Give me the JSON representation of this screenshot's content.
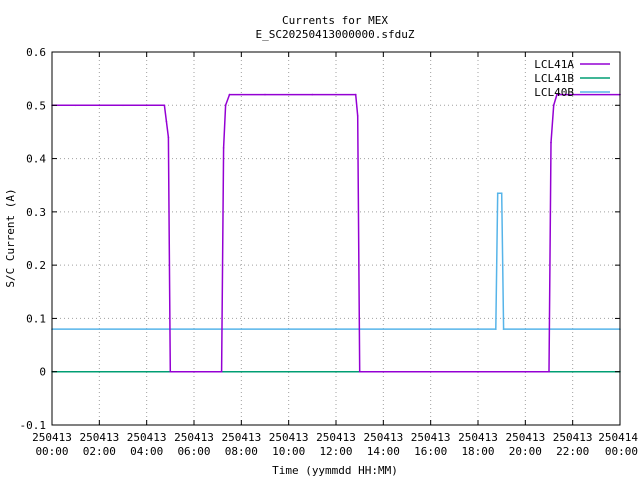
{
  "chart_data": {
    "type": "line",
    "title": "Currents for MEX",
    "subtitle": "E_SC20250413000000.sfduZ",
    "xlabel": "Time (yymmdd HH:MM)",
    "ylabel": "S/C Current (A)",
    "xlim": [
      "2025-04-13 00:00",
      "2025-04-14 00:00"
    ],
    "ylim": [
      -0.1,
      0.6
    ],
    "grid": true,
    "legend_position": "top-right",
    "y_ticks": [
      "-0.1",
      "0",
      "0.1",
      "0.2",
      "0.3",
      "0.4",
      "0.5",
      "0.6"
    ],
    "x_ticks": [
      {
        "date": "250413",
        "time": "00:00"
      },
      {
        "date": "250413",
        "time": "02:00"
      },
      {
        "date": "250413",
        "time": "04:00"
      },
      {
        "date": "250413",
        "time": "06:00"
      },
      {
        "date": "250413",
        "time": "08:00"
      },
      {
        "date": "250413",
        "time": "10:00"
      },
      {
        "date": "250413",
        "time": "12:00"
      },
      {
        "date": "250413",
        "time": "14:00"
      },
      {
        "date": "250413",
        "time": "16:00"
      },
      {
        "date": "250413",
        "time": "18:00"
      },
      {
        "date": "250413",
        "time": "20:00"
      },
      {
        "date": "250413",
        "time": "22:00"
      },
      {
        "date": "250414",
        "time": "00:00"
      }
    ],
    "series": [
      {
        "name": "LCL41A",
        "color": "#9400d3",
        "points": [
          [
            "00:00",
            0.5
          ],
          [
            "01:00",
            0.5
          ],
          [
            "02:00",
            0.5
          ],
          [
            "03:00",
            0.5
          ],
          [
            "04:00",
            0.5
          ],
          [
            "04:45",
            0.5
          ],
          [
            "04:50",
            0.47
          ],
          [
            "04:55",
            0.44
          ],
          [
            "05:00",
            0.0
          ],
          [
            "07:10",
            0.0
          ],
          [
            "07:15",
            0.42
          ],
          [
            "07:20",
            0.5
          ],
          [
            "07:30",
            0.52
          ],
          [
            "09:00",
            0.52
          ],
          [
            "11:00",
            0.52
          ],
          [
            "12:50",
            0.52
          ],
          [
            "12:55",
            0.48
          ],
          [
            "13:00",
            0.0
          ],
          [
            "21:00",
            0.0
          ],
          [
            "21:05",
            0.43
          ],
          [
            "21:12",
            0.5
          ],
          [
            "21:20",
            0.52
          ],
          [
            "24:00",
            0.52
          ]
        ]
      },
      {
        "name": "LCL41B",
        "color": "#009e73",
        "points": [
          [
            "00:00",
            0.0
          ],
          [
            "24:00",
            0.0
          ]
        ]
      },
      {
        "name": "LCL40B",
        "color": "#56b4e9",
        "points": [
          [
            "00:00",
            0.08
          ],
          [
            "18:45",
            0.08
          ],
          [
            "18:50",
            0.335
          ],
          [
            "19:00",
            0.335
          ],
          [
            "19:05",
            0.08
          ],
          [
            "24:00",
            0.08
          ]
        ]
      }
    ]
  }
}
